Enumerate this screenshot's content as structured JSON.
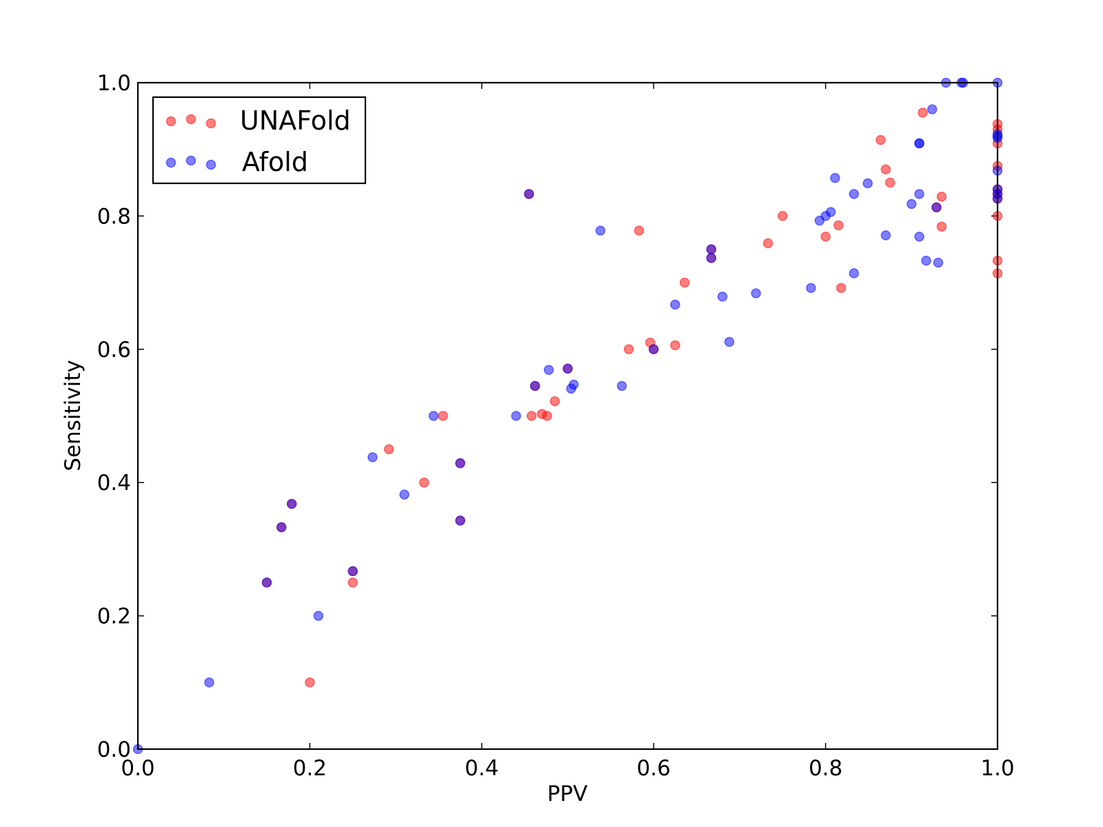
{
  "chart_data": {
    "type": "scatter",
    "title": "",
    "xlabel": "PPV",
    "ylabel": "Sensitivity",
    "xlim": [
      0.0,
      1.0
    ],
    "ylim": [
      0.0,
      1.0
    ],
    "xticks": [
      "0.0",
      "0.2",
      "0.4",
      "0.6",
      "0.8",
      "1.0"
    ],
    "yticks": [
      "0.0",
      "0.2",
      "0.4",
      "0.6",
      "0.8",
      "1.0"
    ],
    "grid": false,
    "legend_position": "top-left",
    "series": [
      {
        "name": "UNAFold",
        "color": "#ff0000",
        "points": [
          [
            0.2,
            0.1
          ],
          [
            0.25,
            0.25
          ],
          [
            0.292,
            0.45
          ],
          [
            0.333,
            0.4
          ],
          [
            0.355,
            0.5
          ],
          [
            0.458,
            0.5
          ],
          [
            0.47,
            0.503
          ],
          [
            0.476,
            0.5
          ],
          [
            0.485,
            0.522
          ],
          [
            0.571,
            0.6
          ],
          [
            0.583,
            0.778
          ],
          [
            0.596,
            0.61
          ],
          [
            0.625,
            0.606
          ],
          [
            0.636,
            0.7
          ],
          [
            0.733,
            0.759
          ],
          [
            0.75,
            0.8
          ],
          [
            0.8,
            0.769
          ],
          [
            0.815,
            0.786
          ],
          [
            0.818,
            0.692
          ],
          [
            0.864,
            0.914
          ],
          [
            0.87,
            0.87
          ],
          [
            0.875,
            0.85
          ],
          [
            0.913,
            0.955
          ],
          [
            0.935,
            0.829
          ],
          [
            0.935,
            0.784
          ],
          [
            1.0,
            0.714
          ],
          [
            1.0,
            0.733
          ],
          [
            1.0,
            0.8
          ],
          [
            1.0,
            0.875
          ],
          [
            1.0,
            0.909
          ],
          [
            1.0,
            0.93
          ],
          [
            1.0,
            0.938
          ],
          [
            0.167,
            0.333
          ],
          [
            0.179,
            0.368
          ],
          [
            0.15,
            0.25
          ],
          [
            0.25,
            0.267
          ],
          [
            0.375,
            0.429
          ],
          [
            0.375,
            0.343
          ],
          [
            0.455,
            0.833
          ],
          [
            0.462,
            0.545
          ],
          [
            0.5,
            0.571
          ],
          [
            0.6,
            0.6
          ],
          [
            0.667,
            0.75
          ],
          [
            0.667,
            0.737
          ],
          [
            0.929,
            0.813
          ],
          [
            1.0,
            0.833
          ],
          [
            1.0,
            0.84
          ],
          [
            1.0,
            0.826
          ]
        ]
      },
      {
        "name": "Afold",
        "color": "#0000ff",
        "points": [
          [
            0.0,
            0.0
          ],
          [
            0.083,
            0.1
          ],
          [
            0.21,
            0.2
          ],
          [
            0.273,
            0.438
          ],
          [
            0.31,
            0.382
          ],
          [
            0.344,
            0.5
          ],
          [
            0.44,
            0.5
          ],
          [
            0.478,
            0.569
          ],
          [
            0.504,
            0.541
          ],
          [
            0.507,
            0.547
          ],
          [
            0.538,
            0.778
          ],
          [
            0.563,
            0.545
          ],
          [
            0.625,
            0.667
          ],
          [
            0.68,
            0.679
          ],
          [
            0.688,
            0.611
          ],
          [
            0.719,
            0.684
          ],
          [
            0.783,
            0.692
          ],
          [
            0.793,
            0.793
          ],
          [
            0.8,
            0.8
          ],
          [
            0.806,
            0.806
          ],
          [
            0.811,
            0.857
          ],
          [
            0.833,
            0.833
          ],
          [
            0.833,
            0.714
          ],
          [
            0.849,
            0.849
          ],
          [
            0.87,
            0.771
          ],
          [
            0.9,
            0.818
          ],
          [
            0.909,
            0.909
          ],
          [
            0.909,
            0.909
          ],
          [
            0.909,
            0.833
          ],
          [
            0.909,
            0.769
          ],
          [
            0.917,
            0.733
          ],
          [
            0.924,
            0.96
          ],
          [
            0.931,
            0.73
          ],
          [
            0.94,
            1.0
          ],
          [
            0.958,
            1.0
          ],
          [
            0.96,
            1.0
          ],
          [
            1.0,
            1.0
          ],
          [
            1.0,
            0.92
          ],
          [
            1.0,
            0.917
          ],
          [
            1.0,
            0.868
          ],
          [
            1.0,
            0.923
          ],
          [
            0.167,
            0.333
          ],
          [
            0.179,
            0.368
          ],
          [
            0.15,
            0.25
          ],
          [
            0.25,
            0.267
          ],
          [
            0.375,
            0.429
          ],
          [
            0.375,
            0.343
          ],
          [
            0.455,
            0.833
          ],
          [
            0.462,
            0.545
          ],
          [
            0.5,
            0.571
          ],
          [
            0.6,
            0.6
          ],
          [
            0.667,
            0.75
          ],
          [
            0.667,
            0.737
          ],
          [
            0.929,
            0.813
          ],
          [
            1.0,
            0.833
          ],
          [
            1.0,
            0.84
          ],
          [
            1.0,
            0.826
          ]
        ]
      }
    ]
  }
}
